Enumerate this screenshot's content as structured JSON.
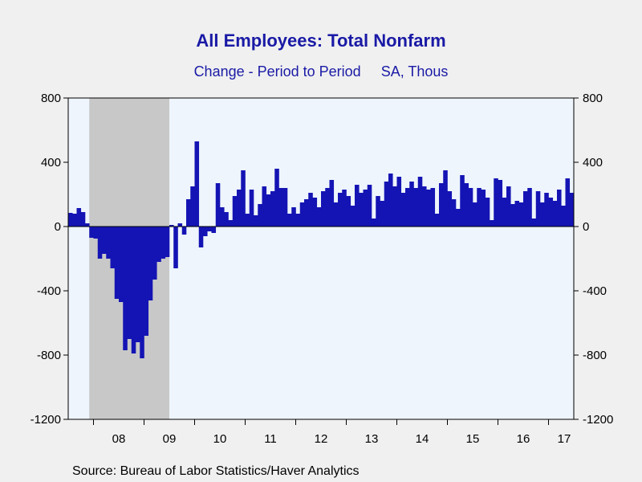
{
  "chart_data": {
    "type": "bar",
    "title": "All Employees: Total Nonfarm",
    "subtitle": "Change - Period to Period     SA, Thous",
    "source": "Source:  Bureau of Labor Statistics/Haver Analytics",
    "ylim": [
      -1200,
      800
    ],
    "yticks": [
      800,
      400,
      0,
      -400,
      -800,
      -1200
    ],
    "x_start": "2007-07",
    "year_labels": [
      "08",
      "09",
      "10",
      "11",
      "12",
      "13",
      "14",
      "15",
      "16",
      "17"
    ],
    "recession": {
      "start": "2007-12",
      "end": "2009-06"
    },
    "colors": {
      "bar": "#1414b4",
      "plot_background": "#eef5fc",
      "recession_shade": "#c8c8c8",
      "title": "#1a1aa6"
    },
    "values": [
      85,
      80,
      115,
      90,
      20,
      -70,
      -75,
      -200,
      -170,
      -200,
      -260,
      -450,
      -470,
      -770,
      -700,
      -790,
      -720,
      -820,
      -680,
      -460,
      -330,
      -220,
      -200,
      -190,
      10,
      -260,
      20,
      -50,
      170,
      250,
      530,
      -130,
      -60,
      -30,
      -40,
      270,
      120,
      90,
      40,
      190,
      230,
      350,
      80,
      230,
      70,
      140,
      250,
      200,
      220,
      360,
      240,
      240,
      80,
      120,
      80,
      150,
      170,
      210,
      180,
      120,
      220,
      240,
      290,
      150,
      210,
      230,
      190,
      130,
      260,
      210,
      230,
      260,
      50,
      190,
      160,
      280,
      330,
      250,
      310,
      210,
      240,
      280,
      240,
      310,
      250,
      230,
      240,
      80,
      270,
      350,
      220,
      170,
      110,
      320,
      270,
      240,
      150,
      240,
      230,
      180,
      40,
      300,
      290,
      180,
      250,
      140,
      160,
      150,
      220,
      240,
      50,
      220,
      150,
      210,
      180,
      160,
      230,
      130,
      300,
      210
    ]
  }
}
